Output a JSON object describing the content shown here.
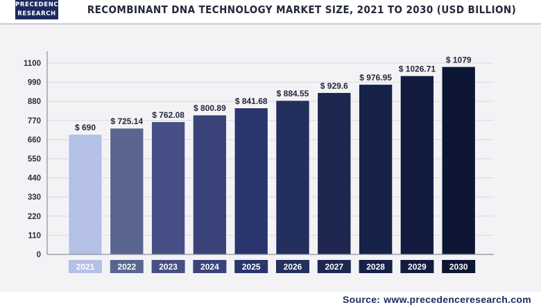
{
  "header": {
    "logo_line1": "PRECEDENCE",
    "logo_line2": "RESEARCH"
  },
  "chart_data": {
    "type": "bar",
    "title": "RECOMBINANT DNA TECHNOLOGY MARKET SIZE, 2021 TO 2030 (USD BILLION)",
    "xlabel": "",
    "ylabel": "",
    "categories": [
      "2021",
      "2022",
      "2023",
      "2024",
      "2025",
      "2026",
      "2027",
      "2028",
      "2029",
      "2030"
    ],
    "values": [
      690,
      725.14,
      762.08,
      800.89,
      841.68,
      884.55,
      929.6,
      976.95,
      1026.71,
      1079
    ],
    "value_labels": [
      "$ 690",
      "$ 725.14",
      "$ 762.08",
      "$ 800.89",
      "$ 841.68",
      "$ 884.55",
      "$ 929.6",
      "$ 976.95",
      "$ 1026.71",
      "$ 1079"
    ],
    "bar_colors": [
      "#b4c0e6",
      "#5b6690",
      "#464f86",
      "#3a4379",
      "#2a356d",
      "#232f5d",
      "#1d2750",
      "#162148",
      "#121c3f",
      "#0d1634"
    ],
    "yticks": [
      0,
      110,
      220,
      330,
      440,
      550,
      660,
      770,
      880,
      990,
      1100
    ],
    "ylim": [
      0,
      1100
    ],
    "grid": true,
    "legend": "none"
  },
  "source": {
    "label": "Source:",
    "url": "www.precedenceresearch.com"
  }
}
